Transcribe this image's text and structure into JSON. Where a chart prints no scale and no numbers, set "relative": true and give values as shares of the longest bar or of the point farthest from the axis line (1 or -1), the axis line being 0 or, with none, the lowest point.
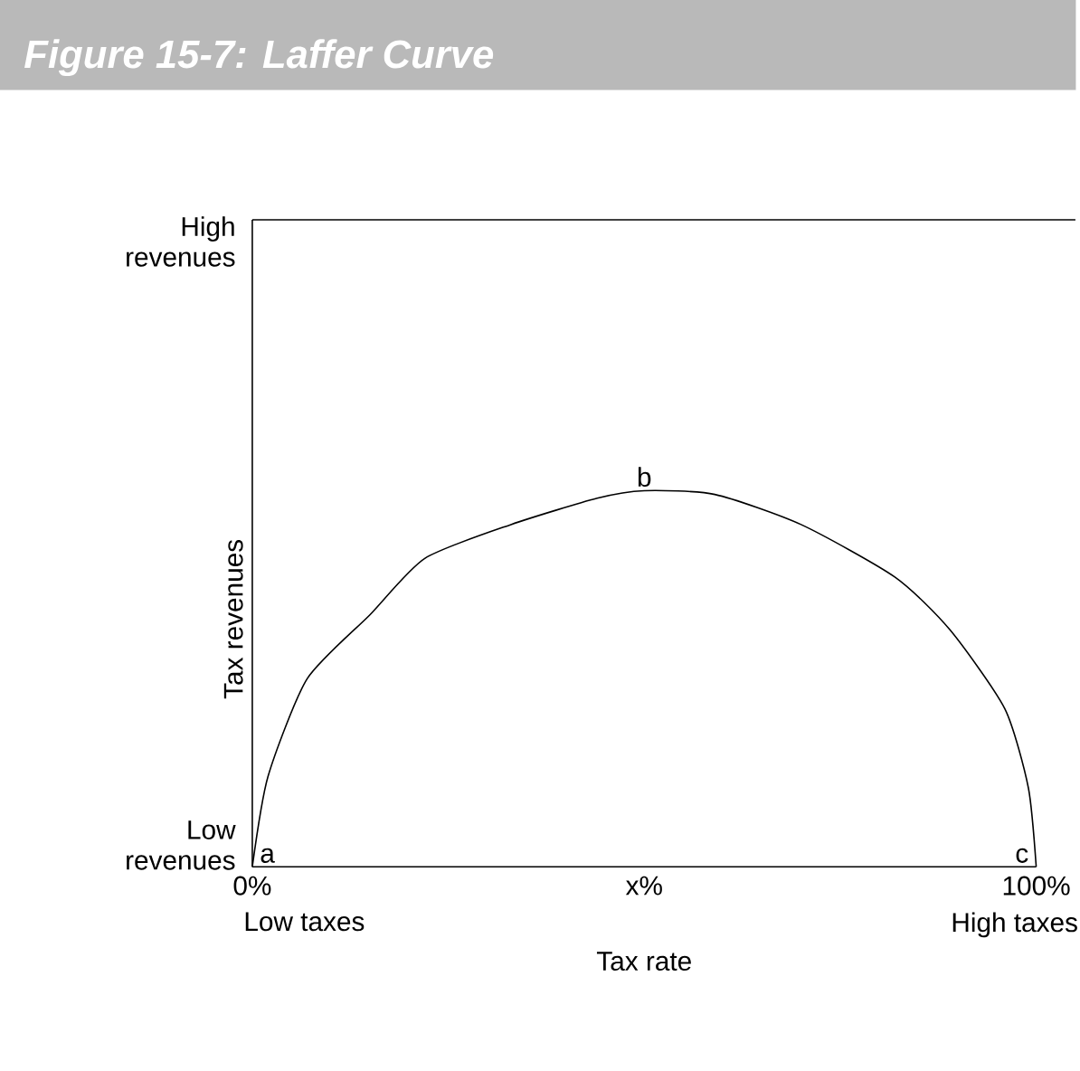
{
  "chart_data": {
    "type": "line",
    "title": "Figure 15-7: Laffer Curve",
    "xlabel": "Tax rate",
    "ylabel": "Tax revenues",
    "relative": true,
    "x": [
      0,
      2,
      7,
      15,
      22,
      33,
      44,
      50,
      59,
      70,
      82,
      89,
      96,
      99,
      100
    ],
    "series": [
      {
        "color": "#000000",
        "values": [
          0,
          0.24,
          0.5,
          0.67,
          0.82,
          0.91,
          0.98,
          1,
          0.99,
          0.91,
          0.77,
          0.63,
          0.42,
          0.21,
          0
        ]
      }
    ],
    "xlim": [
      0,
      100
    ],
    "xticks": [
      {
        "value": 0,
        "label": "0%"
      },
      {
        "value": 50,
        "label": "x%"
      },
      {
        "value": 100,
        "label": "100%"
      }
    ],
    "annotations": [
      "High revenues",
      "Low revenues",
      "Low taxes",
      "High taxes",
      {
        "text": "a",
        "x": 0,
        "y": 0
      },
      {
        "text": "b",
        "x": 50,
        "y": 1
      },
      {
        "text": "c",
        "x": 100,
        "y": 0
      }
    ]
  }
}
